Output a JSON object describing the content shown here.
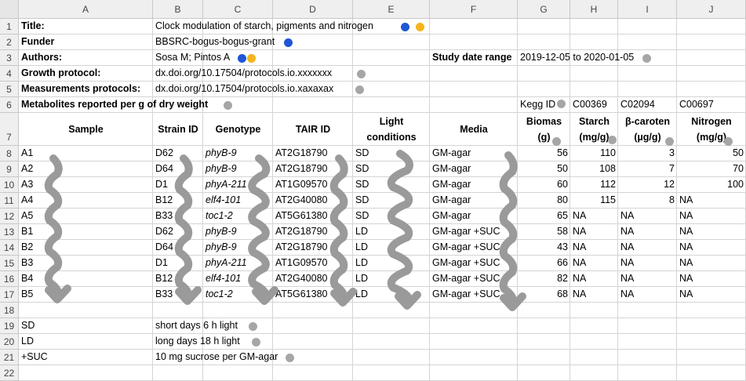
{
  "columns": [
    "A",
    "B",
    "C",
    "D",
    "E",
    "F",
    "G",
    "H",
    "I",
    "J"
  ],
  "rows": [
    "1",
    "2",
    "3",
    "4",
    "5",
    "6",
    "7",
    "8",
    "9",
    "10",
    "11",
    "12",
    "13",
    "14",
    "15",
    "16",
    "17",
    "18",
    "19",
    "20",
    "21",
    "22"
  ],
  "meta": {
    "title_label": "Title:",
    "title_value": "Clock modulation of starch, pigments and nitrogen",
    "funder_label": "Funder",
    "funder_value": "BBSRC-bogus-bogus-grant",
    "authors_label": "Authors:",
    "authors_value": "Sosa M; Pintos A",
    "study_date_label": "Study date range",
    "study_date_value": "2019-12-05 to 2020-01-05",
    "growth_label": "Growth protocol:",
    "growth_value": "dx.doi.org/10.17504/protocols.io.xxxxxxx",
    "measure_label": "Measurements protocols:",
    "measure_value": "dx.doi.org/10.17504/protocols.io.xaxaxax",
    "metabolites_label": "Metabolites reported per g of dry weight"
  },
  "kegg": {
    "label": "Kegg ID",
    "ids": [
      "C00369",
      "C02094",
      "C00697"
    ]
  },
  "headers": {
    "sample": "Sample",
    "strain": "Strain ID",
    "genotype": "Genotype",
    "tair": "TAIR ID",
    "light_1": "Light",
    "light_2": "conditions",
    "media": "Media",
    "biomass_1": "Biomas",
    "biomass_2": "(g)",
    "starch_1": "Starch",
    "starch_2": "(mg/g)",
    "carotene_1": "β-caroten",
    "carotene_2": "(µg/g)",
    "nitrogen_1": "Nitrogen",
    "nitrogen_2": "(mg/g)"
  },
  "table": [
    {
      "sample": "A1",
      "strain": "D62",
      "genotype": "phyB-9",
      "tair": "AT2G18790",
      "light": "SD",
      "media": "GM-agar",
      "biomass": "56",
      "starch": "110",
      "carotene": "3",
      "nitrogen": "50"
    },
    {
      "sample": "A2",
      "strain": "D64",
      "genotype": "phyB-9",
      "tair": "AT2G18790",
      "light": "SD",
      "media": "GM-agar",
      "biomass": "50",
      "starch": "108",
      "carotene": "7",
      "nitrogen": "70"
    },
    {
      "sample": "A3",
      "strain": "D1",
      "genotype": "phyA-211",
      "tair": "AT1G09570",
      "light": "SD",
      "media": "GM-agar",
      "biomass": "60",
      "starch": "112",
      "carotene": "12",
      "nitrogen": "100"
    },
    {
      "sample": "A4",
      "strain": "B12",
      "genotype": "elf4-101",
      "tair": "AT2G40080",
      "light": "SD",
      "media": "GM-agar",
      "biomass": "80",
      "starch": "115",
      "carotene": "8",
      "nitrogen": "NA"
    },
    {
      "sample": "A5",
      "strain": "B33",
      "genotype": "toc1-2",
      "tair": "AT5G61380",
      "light": "SD",
      "media": "GM-agar",
      "biomass": "65",
      "starch": "NA",
      "carotene": "NA",
      "nitrogen": "NA"
    },
    {
      "sample": "B1",
      "strain": "D62",
      "genotype": "phyB-9",
      "tair": "AT2G18790",
      "light": "LD",
      "media": "GM-agar +SUC",
      "biomass": "58",
      "starch": "NA",
      "carotene": "NA",
      "nitrogen": "NA"
    },
    {
      "sample": "B2",
      "strain": "D64",
      "genotype": "phyB-9",
      "tair": "AT2G18790",
      "light": "LD",
      "media": "GM-agar +SUC",
      "biomass": "43",
      "starch": "NA",
      "carotene": "NA",
      "nitrogen": "NA"
    },
    {
      "sample": "B3",
      "strain": "D1",
      "genotype": "phyA-211",
      "tair": "AT1G09570",
      "light": "LD",
      "media": "GM-agar +SUC",
      "biomass": "66",
      "starch": "NA",
      "carotene": "NA",
      "nitrogen": "NA"
    },
    {
      "sample": "B4",
      "strain": "B12",
      "genotype": "elf4-101",
      "tair": "AT2G40080",
      "light": "LD",
      "media": "GM-agar +SUC",
      "biomass": "82",
      "starch": "NA",
      "carotene": "NA",
      "nitrogen": "NA"
    },
    {
      "sample": "B5",
      "strain": "B33",
      "genotype": "toc1-2",
      "tair": "AT5G61380",
      "light": "LD",
      "media": "GM-agar +SUC",
      "biomass": "68",
      "starch": "NA",
      "carotene": "NA",
      "nitrogen": "NA"
    }
  ],
  "legend": [
    {
      "key": "SD",
      "desc": "short days 6 h light"
    },
    {
      "key": "LD",
      "desc": "long days 18 h light"
    },
    {
      "key": "+SUC",
      "desc": "10 mg sucrose per GM-agar"
    }
  ],
  "colors": {
    "gray_dot": "#a6a6a6",
    "blue_dot": "#1e56d6",
    "orange_dot": "#f4b41a",
    "squiggle": "#9a9a9a"
  }
}
